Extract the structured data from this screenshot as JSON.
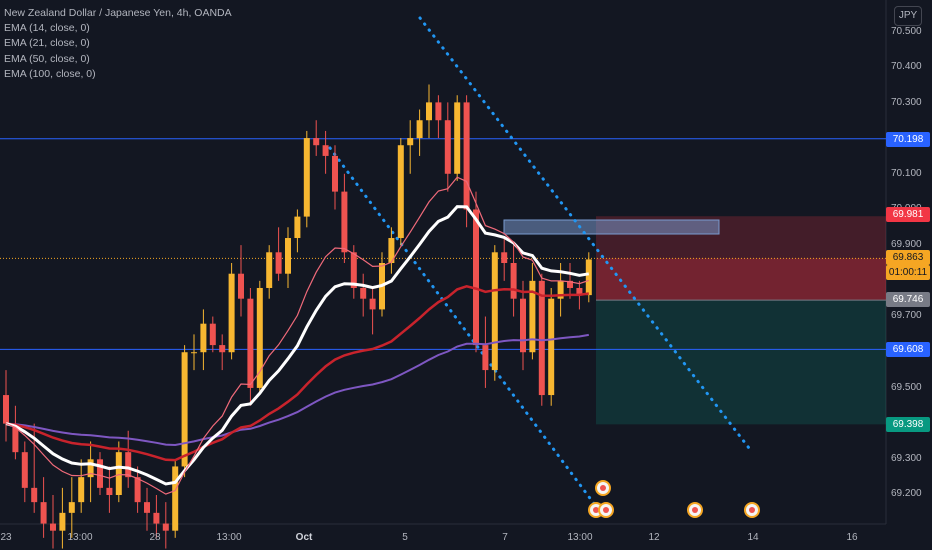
{
  "header": {
    "symbol": "New Zealand Dollar / Japanese Yen, 4h, OANDA",
    "currency_button": "JPY"
  },
  "indicators": [
    {
      "label": "EMA (14, close, 0)",
      "color": "#f06a7a"
    },
    {
      "label": "EMA (21, close, 0)",
      "color": "#ffffff"
    },
    {
      "label": "EMA (50, close, 0)",
      "color": "#c8232c"
    },
    {
      "label": "EMA (100, close, 0)",
      "color": "#7e57c2"
    }
  ],
  "axis": {
    "y_ticks": [
      "70.500",
      "70.400",
      "70.300",
      "70.100",
      "70.000",
      "69.900",
      "69.700",
      "69.500",
      "69.300",
      "69.200"
    ],
    "x_ticks": [
      {
        "label": "23",
        "bold": false
      },
      {
        "label": "13:00",
        "bold": false
      },
      {
        "label": "28",
        "bold": false
      },
      {
        "label": "13:00",
        "bold": false
      },
      {
        "label": "Oct",
        "bold": true
      },
      {
        "label": "5",
        "bold": false
      },
      {
        "label": "7",
        "bold": false
      },
      {
        "label": "13:00",
        "bold": false
      },
      {
        "label": "12",
        "bold": false
      },
      {
        "label": "14",
        "bold": false
      },
      {
        "label": "16",
        "bold": false
      }
    ]
  },
  "price_labels": [
    {
      "value": "70.198",
      "color": "#2962ff"
    },
    {
      "value": "69.981",
      "color": "#f23645"
    },
    {
      "value": "69.863",
      "color": "#f5a623",
      "text_color": "#131722"
    },
    {
      "value": "01:00:11",
      "color": "#f5a623",
      "text_color": "#131722"
    },
    {
      "value": "69.746",
      "color": "#787b86"
    },
    {
      "value": "69.608",
      "color": "#2962ff"
    },
    {
      "value": "69.398",
      "color": "#089981"
    }
  ],
  "chart_data": {
    "type": "candlestick",
    "y_range": [
      69.12,
      70.55
    ],
    "horizontal_levels": [
      70.198,
      69.608
    ],
    "last_price": 69.863,
    "position": {
      "entry": 69.746,
      "stop": 69.981,
      "target": 69.398
    },
    "candles": [
      [
        69.48,
        69.55,
        69.35,
        69.4
      ],
      [
        69.4,
        69.45,
        69.3,
        69.32
      ],
      [
        69.32,
        69.35,
        69.18,
        69.22
      ],
      [
        69.22,
        69.4,
        69.15,
        69.18
      ],
      [
        69.18,
        69.25,
        69.08,
        69.12
      ],
      [
        69.12,
        69.2,
        69.05,
        69.1
      ],
      [
        69.1,
        69.22,
        69.05,
        69.15
      ],
      [
        69.15,
        69.25,
        69.08,
        69.18
      ],
      [
        69.18,
        69.3,
        69.15,
        69.25
      ],
      [
        69.25,
        69.35,
        69.18,
        69.3
      ],
      [
        69.3,
        69.32,
        69.2,
        69.22
      ],
      [
        69.22,
        69.28,
        69.15,
        69.2
      ],
      [
        69.2,
        69.35,
        69.18,
        69.32
      ],
      [
        69.32,
        69.38,
        69.22,
        69.25
      ],
      [
        69.25,
        69.28,
        69.15,
        69.18
      ],
      [
        69.18,
        69.22,
        69.1,
        69.15
      ],
      [
        69.15,
        69.2,
        69.08,
        69.12
      ],
      [
        69.12,
        69.18,
        69.05,
        69.1
      ],
      [
        69.1,
        69.3,
        69.08,
        69.28
      ],
      [
        69.28,
        69.62,
        69.25,
        69.6
      ],
      [
        69.6,
        69.65,
        69.55,
        69.6
      ],
      [
        69.6,
        69.72,
        69.55,
        69.68
      ],
      [
        69.68,
        69.7,
        69.6,
        69.62
      ],
      [
        69.62,
        69.65,
        69.55,
        69.6
      ],
      [
        69.6,
        69.85,
        69.58,
        69.82
      ],
      [
        69.82,
        69.9,
        69.7,
        69.75
      ],
      [
        69.75,
        69.78,
        69.45,
        69.5
      ],
      [
        69.5,
        69.8,
        69.48,
        69.78
      ],
      [
        69.78,
        69.9,
        69.75,
        69.88
      ],
      [
        69.88,
        69.95,
        69.8,
        69.82
      ],
      [
        69.82,
        69.95,
        69.78,
        69.92
      ],
      [
        69.92,
        70.0,
        69.88,
        69.98
      ],
      [
        69.98,
        70.22,
        69.95,
        70.2
      ],
      [
        70.2,
        70.25,
        70.15,
        70.18
      ],
      [
        70.18,
        70.22,
        70.1,
        70.15
      ],
      [
        70.15,
        70.18,
        70.0,
        70.05
      ],
      [
        70.05,
        70.1,
        69.85,
        69.88
      ],
      [
        69.88,
        69.9,
        69.75,
        69.78
      ],
      [
        69.78,
        69.82,
        69.7,
        69.75
      ],
      [
        69.75,
        69.78,
        69.65,
        69.72
      ],
      [
        69.72,
        69.88,
        69.7,
        69.85
      ],
      [
        69.85,
        69.95,
        69.82,
        69.92
      ],
      [
        69.92,
        70.2,
        69.9,
        70.18
      ],
      [
        70.18,
        70.25,
        70.1,
        70.2
      ],
      [
        70.2,
        70.28,
        70.15,
        70.25
      ],
      [
        70.25,
        70.35,
        70.2,
        70.3
      ],
      [
        70.3,
        70.32,
        70.2,
        70.25
      ],
      [
        70.25,
        70.3,
        70.05,
        70.1
      ],
      [
        70.1,
        70.32,
        70.08,
        70.3
      ],
      [
        70.3,
        70.32,
        69.95,
        70.0
      ],
      [
        70.0,
        70.05,
        69.6,
        69.62
      ],
      [
        69.62,
        69.7,
        69.5,
        69.55
      ],
      [
        69.55,
        69.9,
        69.52,
        69.88
      ],
      [
        69.88,
        69.92,
        69.8,
        69.85
      ],
      [
        69.85,
        69.9,
        69.7,
        69.75
      ],
      [
        69.75,
        69.8,
        69.55,
        69.6
      ],
      [
        69.6,
        69.85,
        69.58,
        69.8
      ],
      [
        69.8,
        69.82,
        69.45,
        69.48
      ],
      [
        69.48,
        69.78,
        69.45,
        69.75
      ],
      [
        69.75,
        69.85,
        69.7,
        69.8
      ],
      [
        69.8,
        69.85,
        69.75,
        69.78
      ],
      [
        69.78,
        69.8,
        69.72,
        69.76
      ],
      [
        69.76,
        69.88,
        69.74,
        69.86
      ]
    ]
  }
}
